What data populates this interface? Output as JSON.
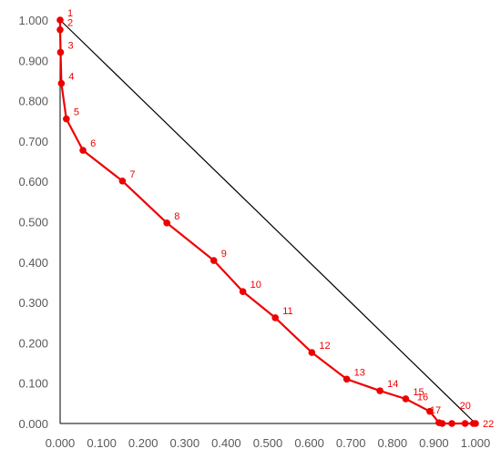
{
  "chart_data": {
    "type": "scatter",
    "xlim": [
      0,
      1
    ],
    "ylim": [
      0,
      1
    ],
    "grid": false,
    "legend": "none",
    "x_ticks": [
      "0.000",
      "0.100",
      "0.200",
      "0.300",
      "0.400",
      "0.500",
      "0.600",
      "0.700",
      "0.800",
      "0.900",
      "1.000"
    ],
    "y_ticks": [
      "0.000",
      "0.100",
      "0.200",
      "0.300",
      "0.400",
      "0.500",
      "0.600",
      "0.700",
      "0.800",
      "0.900",
      "1.000"
    ],
    "colors": {
      "series": "#ee0000",
      "reference_line": "#000000",
      "axis": "#000000"
    },
    "reference_line": {
      "x": [
        0,
        1
      ],
      "y": [
        1,
        0
      ]
    },
    "series": [
      {
        "points": [
          {
            "label": "1",
            "x": 0.0,
            "y": 1.0
          },
          {
            "label": "2",
            "x": 0.0,
            "y": 0.976
          },
          {
            "label": "3",
            "x": 0.001,
            "y": 0.92
          },
          {
            "label": "4",
            "x": 0.003,
            "y": 0.843
          },
          {
            "label": "5",
            "x": 0.015,
            "y": 0.755
          },
          {
            "label": "6",
            "x": 0.055,
            "y": 0.677
          },
          {
            "label": "7",
            "x": 0.15,
            "y": 0.601
          },
          {
            "label": "8",
            "x": 0.257,
            "y": 0.497
          },
          {
            "label": "9",
            "x": 0.37,
            "y": 0.404
          },
          {
            "label": "10",
            "x": 0.44,
            "y": 0.327
          },
          {
            "label": "11",
            "x": 0.518,
            "y": 0.262
          },
          {
            "label": "12",
            "x": 0.606,
            "y": 0.176
          },
          {
            "label": "13",
            "x": 0.69,
            "y": 0.11
          },
          {
            "label": "14",
            "x": 0.77,
            "y": 0.081
          },
          {
            "label": "15",
            "x": 0.832,
            "y": 0.061
          },
          {
            "label": "16",
            "x": 0.89,
            "y": 0.03
          },
          {
            "label": "17",
            "x": 0.912,
            "y": 0.002
          },
          {
            "label": "",
            "x": 0.92,
            "y": 0.0
          },
          {
            "label": "",
            "x": 0.943,
            "y": 0.0
          },
          {
            "label": "20",
            "x": 0.975,
            "y": 0.0
          },
          {
            "label": "",
            "x": 0.995,
            "y": 0.0
          },
          {
            "label": "22",
            "x": 1.0,
            "y": 0.0
          }
        ]
      }
    ]
  }
}
